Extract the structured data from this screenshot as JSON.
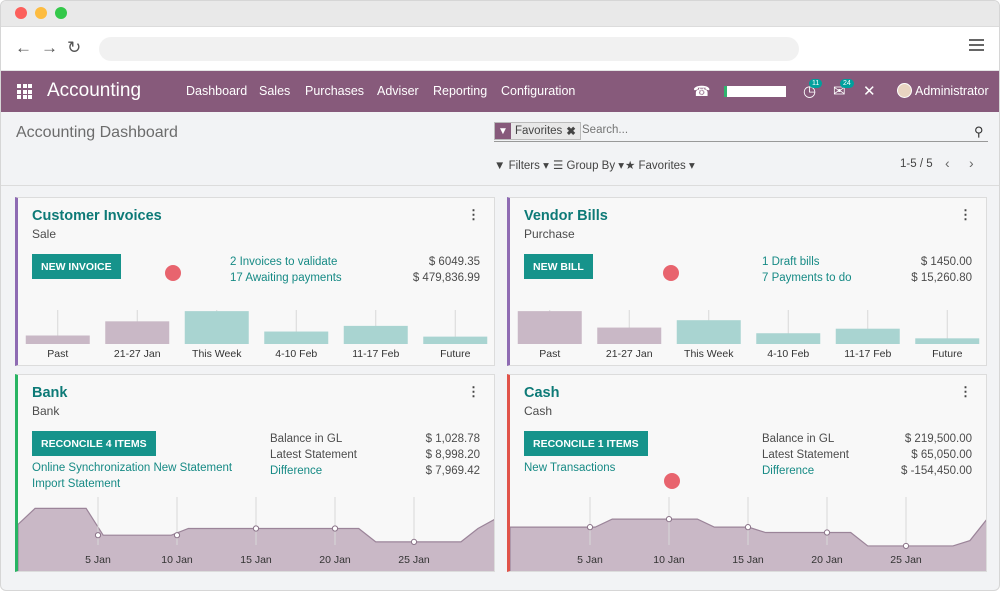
{
  "browser": {},
  "topnav": {
    "app_name": "Accounting",
    "menu": [
      "Dashboard",
      "Sales",
      "Purchases",
      "Adviser",
      "Reporting",
      "Configuration"
    ],
    "badges": [
      "11",
      "24"
    ],
    "user": "Administrator"
  },
  "control": {
    "page_title": "Accounting Dashboard",
    "facet": "Favorites",
    "search_placeholder": "Search...",
    "filters_label": "Filters",
    "groupby_label": "Group By",
    "favorites_label": "Favorites",
    "pager": "1-5 / 5"
  },
  "cards": {
    "invoices": {
      "title": "Customer Invoices",
      "subtitle": "Sale",
      "button": "NEW INVOICE",
      "links": [
        "2 Invoices to validate",
        "17 Awaiting payments"
      ],
      "amounts": [
        "$ 6049.35",
        "$ 479,836.99"
      ],
      "accent": "#8e6bb3"
    },
    "bills": {
      "title": "Vendor Bills",
      "subtitle": "Purchase",
      "button": "NEW BILL",
      "links": [
        "1 Draft bills",
        "7 Payments to do"
      ],
      "amounts": [
        "$ 1450.00",
        "$ 15,260.80"
      ],
      "accent": "#8e6bb3"
    },
    "bank": {
      "title": "Bank",
      "subtitle": "Bank",
      "button": "RECONCILE 4 ITEMS",
      "links": [
        "Online Synchronization New Statement",
        "Import Statement"
      ],
      "labels": [
        "Balance in GL",
        "Latest Statement"
      ],
      "diff_label": "Difference",
      "amounts": [
        "$ 1,028.78",
        "$ 8,998.20",
        "$ 7,969.42"
      ],
      "accent": "#28b463"
    },
    "cash": {
      "title": "Cash",
      "subtitle": "Cash",
      "button": "RECONCILE 1 ITEMS",
      "links": [
        "New Transactions"
      ],
      "labels": [
        "Balance in GL",
        "Latest Statement"
      ],
      "diff_label": "Difference",
      "amounts": [
        "$ 219,500.00",
        "$ 65,050.00",
        "$ -154,450.00"
      ],
      "accent": "#e0534a"
    }
  },
  "chart_data": [
    {
      "type": "bar",
      "title": "",
      "categories": [
        "Past",
        "21-27 Jan",
        "This Week",
        "4-10 Feb",
        "11-17 Feb",
        "Future"
      ],
      "values": [
        15,
        40,
        58,
        22,
        32,
        13
      ],
      "colors": [
        "#c9b8c6",
        "#c9b8c6",
        "#a9d4d1",
        "#a9d4d1",
        "#a9d4d1",
        "#a9d4d1"
      ]
    },
    {
      "type": "bar",
      "title": "",
      "categories": [
        "Past",
        "21-27 Jan",
        "This Week",
        "4-10 Feb",
        "11-17 Feb",
        "Future"
      ],
      "values": [
        58,
        29,
        42,
        19,
        27,
        10
      ],
      "colors": [
        "#c9b8c6",
        "#c9b8c6",
        "#a9d4d1",
        "#a9d4d1",
        "#a9d4d1",
        "#a9d4d1"
      ]
    },
    {
      "type": "area",
      "title": "",
      "x_ticks": [
        "5 Jan",
        "10 Jan",
        "15 Jan",
        "20 Jan",
        "25 Jan"
      ],
      "values": [
        28,
        40,
        40,
        40,
        40,
        20,
        20,
        20,
        20,
        20,
        25,
        25,
        25,
        25,
        25,
        25,
        25,
        25,
        25,
        25,
        25,
        15,
        15,
        15,
        15,
        15,
        15,
        25,
        32
      ],
      "color": "#c9b8c6"
    },
    {
      "type": "area",
      "title": "",
      "x_ticks": [
        "5 Jan",
        "10 Jan",
        "15 Jan",
        "20 Jan",
        "25 Jan"
      ],
      "values": [
        26,
        26,
        26,
        26,
        26,
        26,
        32,
        32,
        32,
        32,
        32,
        32,
        26,
        26,
        26,
        22,
        22,
        22,
        22,
        22,
        22,
        12,
        12,
        12,
        12,
        12,
        12,
        16,
        32
      ],
      "color": "#c9b8c6"
    }
  ]
}
